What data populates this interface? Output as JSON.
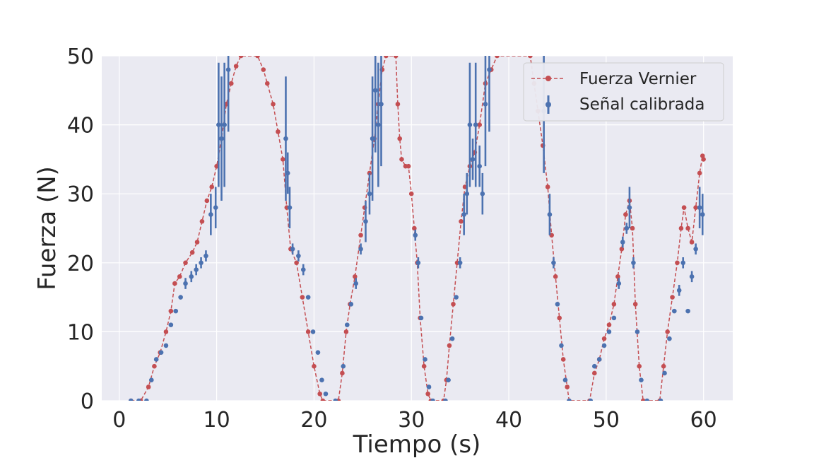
{
  "chart_data": {
    "type": "line",
    "title": "",
    "xlabel": "Tiempo (s)",
    "ylabel": "Fuerza (N)",
    "xlim": [
      -1.8,
      63
    ],
    "ylim": [
      0,
      50
    ],
    "x_ticks": [
      0,
      10,
      20,
      30,
      40,
      50,
      60
    ],
    "y_ticks": [
      0,
      10,
      20,
      30,
      40,
      50
    ],
    "grid": true,
    "background": "#eaeaf2",
    "legend_position": "top-right",
    "series": [
      {
        "name": "Fuerza Vernier",
        "color": "#c44e52",
        "style": "dashed line with circle markers",
        "points": [
          [
            1.2,
            0
          ],
          [
            2.2,
            0
          ],
          [
            3,
            2
          ],
          [
            3.6,
            5
          ],
          [
            4.2,
            7
          ],
          [
            4.8,
            10
          ],
          [
            5.3,
            13
          ],
          [
            5.7,
            17
          ],
          [
            6.2,
            18
          ],
          [
            6.8,
            20
          ],
          [
            7.5,
            21.5
          ],
          [
            8,
            23
          ],
          [
            8.5,
            26
          ],
          [
            9,
            29
          ],
          [
            9.5,
            31
          ],
          [
            10,
            34
          ],
          [
            10.5,
            38
          ],
          [
            11,
            43
          ],
          [
            11.5,
            46
          ],
          [
            12,
            48.5
          ],
          [
            12.5,
            50
          ],
          [
            14.2,
            50
          ],
          [
            14.8,
            48
          ],
          [
            15.2,
            46
          ],
          [
            15.8,
            43
          ],
          [
            16.3,
            39
          ],
          [
            16.8,
            35
          ],
          [
            17.2,
            28
          ],
          [
            17.6,
            22
          ],
          [
            18.2,
            20
          ],
          [
            18.8,
            15
          ],
          [
            19.4,
            10
          ],
          [
            20,
            5
          ],
          [
            20.6,
            1
          ],
          [
            20.9,
            0
          ],
          [
            22.5,
            0
          ],
          [
            22.9,
            4
          ],
          [
            23.3,
            10
          ],
          [
            23.7,
            14
          ],
          [
            24.2,
            18
          ],
          [
            24.8,
            24
          ],
          [
            25.2,
            28
          ],
          [
            25.7,
            33
          ],
          [
            26.2,
            38
          ],
          [
            26.6,
            43
          ],
          [
            27,
            48
          ],
          [
            27.4,
            50
          ],
          [
            28.4,
            50
          ],
          [
            28.6,
            43
          ],
          [
            28.8,
            38
          ],
          [
            29,
            35
          ],
          [
            29.4,
            34
          ],
          [
            29.7,
            34
          ],
          [
            30,
            30
          ],
          [
            30.3,
            25
          ],
          [
            30.6,
            20
          ],
          [
            30.9,
            12
          ],
          [
            31.3,
            5
          ],
          [
            31.7,
            1
          ],
          [
            32,
            0
          ],
          [
            33.3,
            0
          ],
          [
            33.6,
            3
          ],
          [
            33.9,
            8
          ],
          [
            34.3,
            14
          ],
          [
            34.7,
            20
          ],
          [
            35.1,
            26
          ],
          [
            35.5,
            31
          ],
          [
            36,
            34
          ],
          [
            36.5,
            36
          ],
          [
            37,
            40
          ],
          [
            37.6,
            46
          ],
          [
            38.2,
            48
          ],
          [
            38.8,
            50
          ],
          [
            42.2,
            50
          ],
          [
            42.6,
            46
          ],
          [
            43,
            42
          ],
          [
            43.5,
            37
          ],
          [
            44,
            31
          ],
          [
            44.4,
            24
          ],
          [
            44.8,
            18
          ],
          [
            45.2,
            12
          ],
          [
            45.6,
            6
          ],
          [
            46,
            2
          ],
          [
            46.2,
            0
          ],
          [
            48.3,
            0
          ],
          [
            48.8,
            4
          ],
          [
            49.3,
            6
          ],
          [
            49.8,
            9
          ],
          [
            50.3,
            11
          ],
          [
            50.8,
            14
          ],
          [
            51.2,
            18
          ],
          [
            51.6,
            22
          ],
          [
            52,
            27
          ],
          [
            52.4,
            29
          ],
          [
            52.7,
            25
          ],
          [
            53,
            14
          ],
          [
            53.4,
            5
          ],
          [
            53.8,
            0
          ],
          [
            55.5,
            0
          ],
          [
            55.9,
            5
          ],
          [
            56.3,
            10
          ],
          [
            56.8,
            15
          ],
          [
            57.3,
            20
          ],
          [
            57.7,
            25
          ],
          [
            58,
            28
          ],
          [
            58.4,
            25
          ],
          [
            58.8,
            23
          ],
          [
            59.2,
            28
          ],
          [
            59.6,
            33
          ],
          [
            59.9,
            35.5
          ],
          [
            60,
            35
          ]
        ]
      },
      {
        "name": "Señal calibrada",
        "color": "#4c72b0",
        "style": "circle markers with vertical error bars",
        "points": [
          [
            1.2,
            0
          ],
          [
            2,
            0
          ],
          [
            2.8,
            0
          ],
          [
            3.3,
            3
          ],
          [
            3.8,
            6
          ],
          [
            4.3,
            7
          ],
          [
            4.8,
            8
          ],
          [
            5.3,
            11
          ],
          [
            5.8,
            13
          ],
          [
            6.3,
            15
          ],
          [
            6.8,
            17
          ],
          [
            7.4,
            18
          ],
          [
            7.9,
            19
          ],
          [
            8.4,
            20
          ],
          [
            8.9,
            21
          ],
          [
            9.4,
            27
          ],
          [
            9.9,
            28
          ],
          [
            10.2,
            40
          ],
          [
            10.5,
            38
          ],
          [
            10.8,
            40
          ],
          [
            11.2,
            48
          ],
          [
            17.1,
            38
          ],
          [
            17.3,
            33
          ],
          [
            17.5,
            28
          ],
          [
            17.8,
            22
          ],
          [
            18.4,
            21
          ],
          [
            18.9,
            19
          ],
          [
            19.4,
            15
          ],
          [
            19.9,
            10
          ],
          [
            20.4,
            7
          ],
          [
            20.8,
            3
          ],
          [
            21.2,
            1
          ],
          [
            22.2,
            0
          ],
          [
            23,
            5
          ],
          [
            23.4,
            11
          ],
          [
            23.8,
            14
          ],
          [
            24.3,
            17
          ],
          [
            24.8,
            22
          ],
          [
            25.3,
            26
          ],
          [
            25.7,
            30
          ],
          [
            26,
            38
          ],
          [
            26.3,
            45
          ],
          [
            26.6,
            40
          ],
          [
            26.9,
            43
          ],
          [
            30.4,
            24
          ],
          [
            30.7,
            20
          ],
          [
            31,
            12
          ],
          [
            31.4,
            6
          ],
          [
            31.8,
            2
          ],
          [
            32.2,
            0
          ],
          [
            33.5,
            0
          ],
          [
            33.8,
            3
          ],
          [
            34.2,
            9
          ],
          [
            34.6,
            15
          ],
          [
            35,
            20
          ],
          [
            35.4,
            27
          ],
          [
            35.7,
            30
          ],
          [
            36,
            40
          ],
          [
            36.3,
            35
          ],
          [
            36.6,
            40
          ],
          [
            37,
            34
          ],
          [
            37.3,
            30
          ],
          [
            37.6,
            43
          ],
          [
            38,
            48
          ],
          [
            43.6,
            42
          ],
          [
            44.2,
            27
          ],
          [
            44.6,
            20
          ],
          [
            45,
            14
          ],
          [
            45.4,
            8
          ],
          [
            45.8,
            3
          ],
          [
            46.2,
            0
          ],
          [
            48.4,
            0
          ],
          [
            48.8,
            5
          ],
          [
            49.3,
            6
          ],
          [
            49.8,
            8
          ],
          [
            50.3,
            10
          ],
          [
            50.8,
            12
          ],
          [
            51.3,
            17
          ],
          [
            51.7,
            23
          ],
          [
            52.1,
            25
          ],
          [
            52.4,
            28
          ],
          [
            52.8,
            20
          ],
          [
            53.2,
            10
          ],
          [
            53.6,
            3
          ],
          [
            54.2,
            0
          ],
          [
            55.6,
            0
          ],
          [
            56,
            4
          ],
          [
            56.5,
            9
          ],
          [
            57,
            13
          ],
          [
            57.5,
            16
          ],
          [
            57.9,
            20
          ],
          [
            58.4,
            13
          ],
          [
            58.8,
            18
          ],
          [
            59.2,
            22
          ],
          [
            59.6,
            28
          ],
          [
            59.9,
            27
          ]
        ]
      }
    ]
  }
}
